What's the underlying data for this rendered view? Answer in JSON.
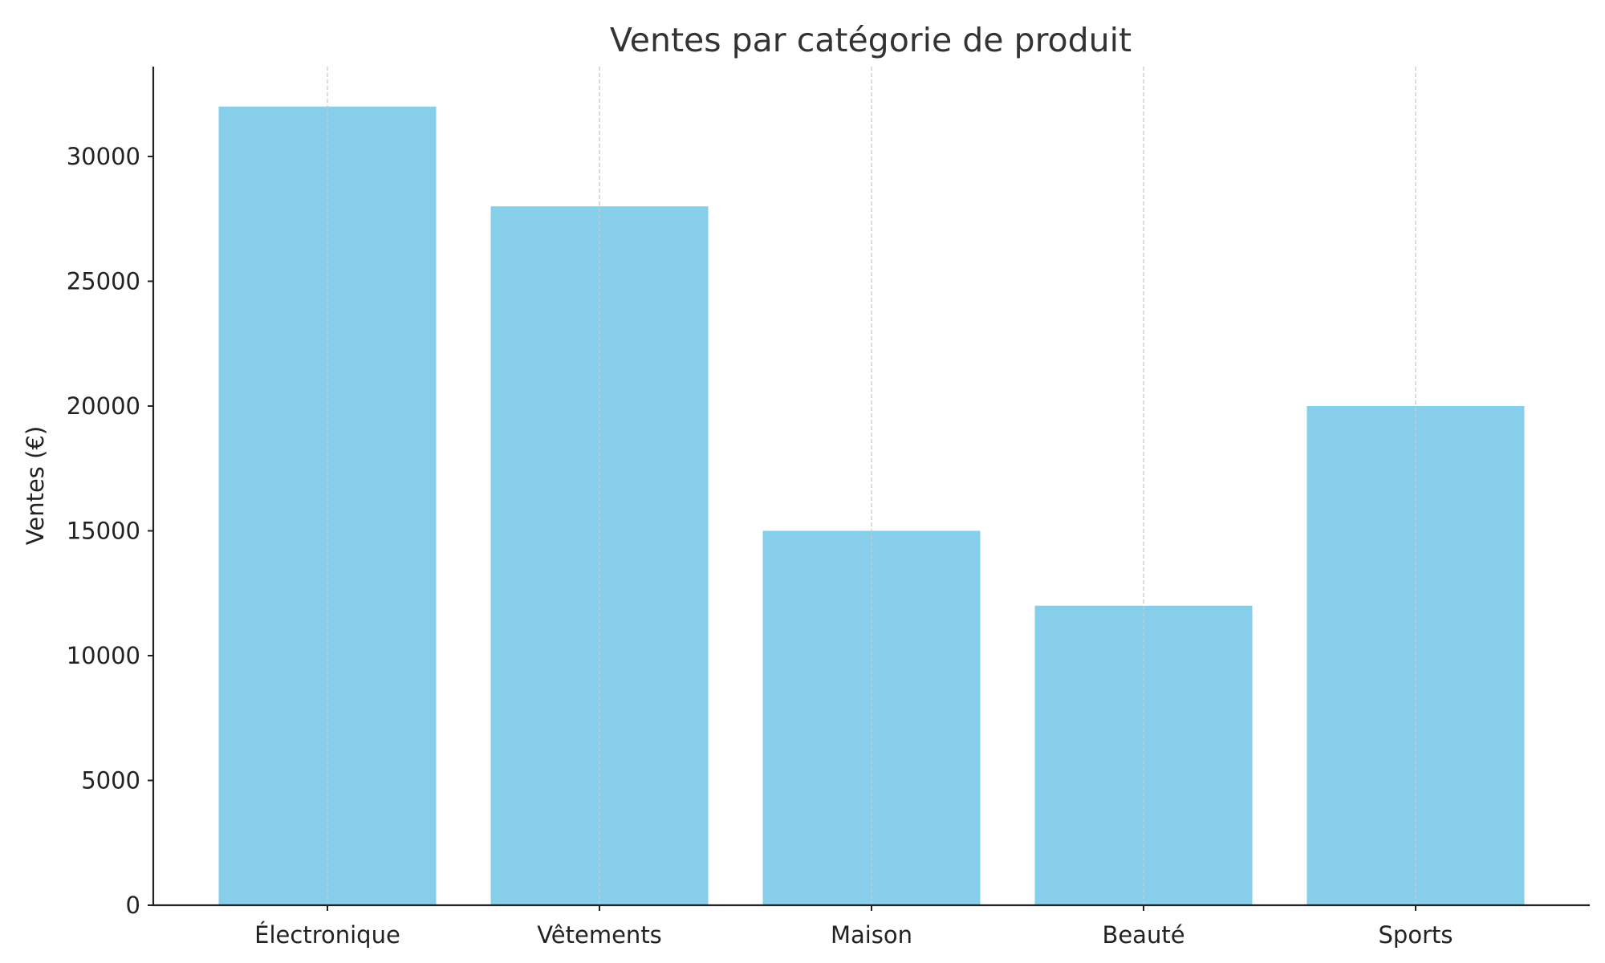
{
  "chart_data": {
    "type": "bar",
    "title": "Ventes par catégorie de produit",
    "xlabel": "",
    "ylabel": "Ventes (€)",
    "categories": [
      "Électronique",
      "Vêtements",
      "Maison",
      "Beauté",
      "Sports"
    ],
    "values": [
      32000,
      28000,
      15000,
      12000,
      20000
    ],
    "ylim": [
      0,
      33600
    ],
    "yticks": [
      0,
      5000,
      10000,
      15000,
      20000,
      25000,
      30000
    ],
    "grid": "vertical dashed lines at category centers",
    "legend": "none",
    "colors": {
      "bar": "#87CEEB",
      "grid": "#c8c8c8",
      "axis": "#222222",
      "text": "#222222",
      "title": "#333333"
    }
  }
}
